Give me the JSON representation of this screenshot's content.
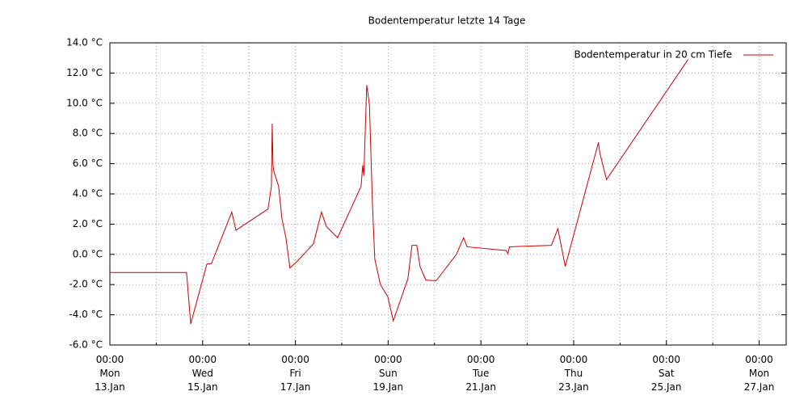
{
  "chart_data": {
    "type": "line",
    "title": "Bodentemperatur letzte 14 Tage",
    "x": [
      "13.Jan 00:00",
      "14.Jan 15:40",
      "14.Jan 17:50",
      "15.Jan 02:10",
      "15.Jan 04:35",
      "15.Jan 15:05",
      "15.Jan 17:15",
      "16.Jan 09:50",
      "16.Jan 11:35",
      "16.Jan 12:00",
      "16.Jan 12:25",
      "16.Jan 12:50",
      "16.Jan 15:20",
      "16.Jan 17:00",
      "16.Jan 19:10",
      "16.Jan 21:10",
      "17.Jan 01:00",
      "17.Jan 09:20",
      "17.Jan 13:30",
      "17.Jan 16:00",
      "17.Jan 21:50",
      "18.Jan 10:00",
      "18.Jan 10:50",
      "18.Jan 11:25",
      "18.Jan 12:55",
      "18.Jan 14:20",
      "18.Jan 15:50",
      "18.Jan 17:05",
      "18.Jan 20:00",
      "18.Jan 23:50",
      "19.Jan 02:40",
      "19.Jan 10:15",
      "19.Jan 12:20",
      "19.Jan 14:50",
      "19.Jan 16:30",
      "19.Jan 19:30",
      "20.Jan 00:50",
      "20.Jan 11:20",
      "20.Jan 15:05",
      "20.Jan 16:50",
      "21.Jan 13:10",
      "21.Jan 14:00",
      "21.Jan 14:50",
      "22.Jan 12:30",
      "22.Jan 15:50",
      "22.Jan 19:40",
      "23.Jan 12:50",
      "23.Jan 13:35",
      "23.Jan 17:00",
      "25.Jan 11:15"
    ],
    "series": [
      {
        "name": "Bodentemperatur in 20 cm Tiefe",
        "color": "#cc0000",
        "values": [
          -1.2,
          -1.2,
          -4.6,
          -0.65,
          -0.6,
          2.8,
          1.6,
          3.0,
          4.5,
          8.65,
          5.9,
          5.5,
          4.5,
          2.4,
          1.05,
          -0.9,
          -0.45,
          0.7,
          2.8,
          1.85,
          1.1,
          4.5,
          5.9,
          5.2,
          11.2,
          9.9,
          3.5,
          -0.3,
          -2.0,
          -2.8,
          -4.4,
          -1.6,
          0.6,
          0.6,
          -0.8,
          -1.7,
          -1.75,
          0.0,
          1.1,
          0.5,
          0.25,
          0.05,
          0.5,
          0.6,
          1.7,
          -0.8,
          7.4,
          6.7,
          4.95,
          12.9
        ]
      }
    ],
    "xlim": [
      "13.Jan 00:00",
      "27.Jan 14:00"
    ],
    "xticks": [
      {
        "value": "13.Jan 00:00",
        "label": "00:00\nMon\n13.Jan"
      },
      {
        "value": "15.Jan 00:00",
        "label": "00:00\nWed\n15.Jan"
      },
      {
        "value": "17.Jan 00:00",
        "label": "00:00\nFri\n17.Jan"
      },
      {
        "value": "19.Jan 00:00",
        "label": "00:00\nSun\n19.Jan"
      },
      {
        "value": "21.Jan 00:00",
        "label": "00:00\nTue\n21.Jan"
      },
      {
        "value": "23.Jan 00:00",
        "label": "00:00\nThu\n23.Jan"
      },
      {
        "value": "25.Jan 00:00",
        "label": "00:00\nSat\n25.Jan"
      },
      {
        "value": "27.Jan 00:00",
        "label": "00:00\nMon\n27.Jan"
      }
    ],
    "ylim": [
      -6,
      14
    ],
    "yticks": [
      {
        "value": -6,
        "label": "-6.0 °C"
      },
      {
        "value": -4,
        "label": "-4.0 °C"
      },
      {
        "value": -2,
        "label": "-2.0 °C"
      },
      {
        "value": 0,
        "label": "0.0 °C"
      },
      {
        "value": 2,
        "label": "2.0 °C"
      },
      {
        "value": 4,
        "label": "4.0 °C"
      },
      {
        "value": 6,
        "label": "6.0 °C"
      },
      {
        "value": 8,
        "label": "8.0 °C"
      },
      {
        "value": 10,
        "label": "10.0 °C"
      },
      {
        "value": 12,
        "label": "12.0 °C"
      },
      {
        "value": 14,
        "label": "14.0 °C"
      }
    ],
    "grid": true,
    "legend": "top-right"
  }
}
